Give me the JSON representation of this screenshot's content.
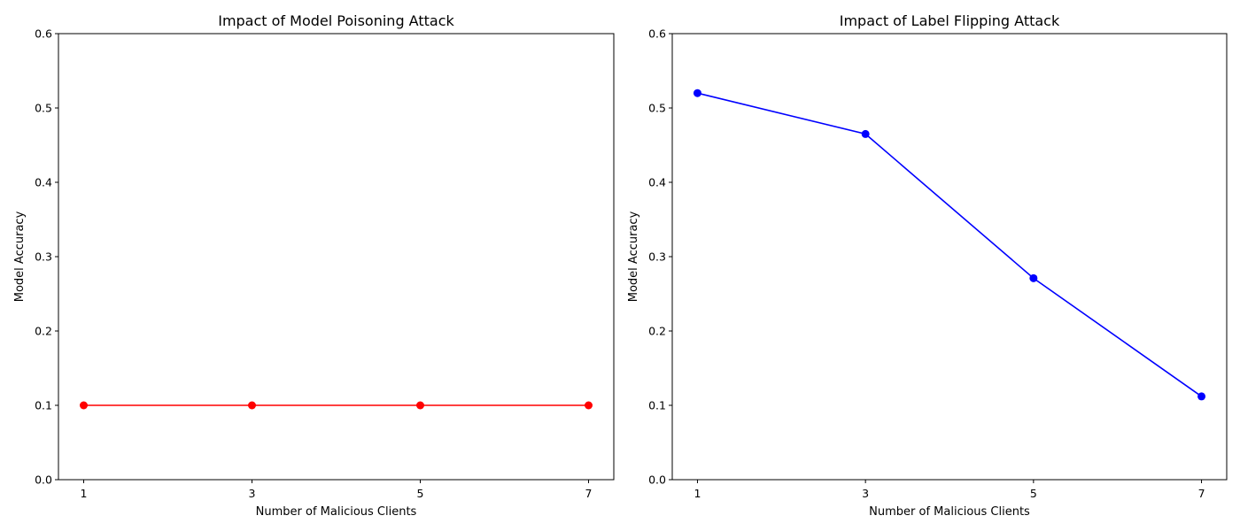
{
  "chart_data": [
    {
      "type": "line",
      "title": "Impact of Model Poisoning Attack",
      "xlabel": "Number of Malicious Clients",
      "ylabel": "Model Accuracy",
      "x": [
        1,
        3,
        5,
        7
      ],
      "xticks": [
        "1",
        "3",
        "5",
        "7"
      ],
      "xlim": [
        0.7,
        7.3
      ],
      "ylim": [
        0.0,
        0.6
      ],
      "yticks": [
        "0.0",
        "0.1",
        "0.2",
        "0.3",
        "0.4",
        "0.5",
        "0.6"
      ],
      "series": [
        {
          "values": [
            0.1,
            0.1,
            0.1,
            0.1
          ],
          "color": "#ff0000",
          "marker": "circle"
        }
      ],
      "grid": false,
      "legend": "none"
    },
    {
      "type": "line",
      "title": "Impact of Label Flipping Attack",
      "xlabel": "Number of Malicious Clients",
      "ylabel": "Model Accuracy",
      "x": [
        1,
        3,
        5,
        7
      ],
      "xticks": [
        "1",
        "3",
        "5",
        "7"
      ],
      "xlim": [
        0.7,
        7.3
      ],
      "ylim": [
        0.0,
        0.6
      ],
      "yticks": [
        "0.0",
        "0.1",
        "0.2",
        "0.3",
        "0.4",
        "0.5",
        "0.6"
      ],
      "series": [
        {
          "values": [
            0.52,
            0.465,
            0.271,
            0.112
          ],
          "color": "#0000ff",
          "marker": "circle"
        }
      ],
      "grid": false,
      "legend": "none"
    }
  ]
}
